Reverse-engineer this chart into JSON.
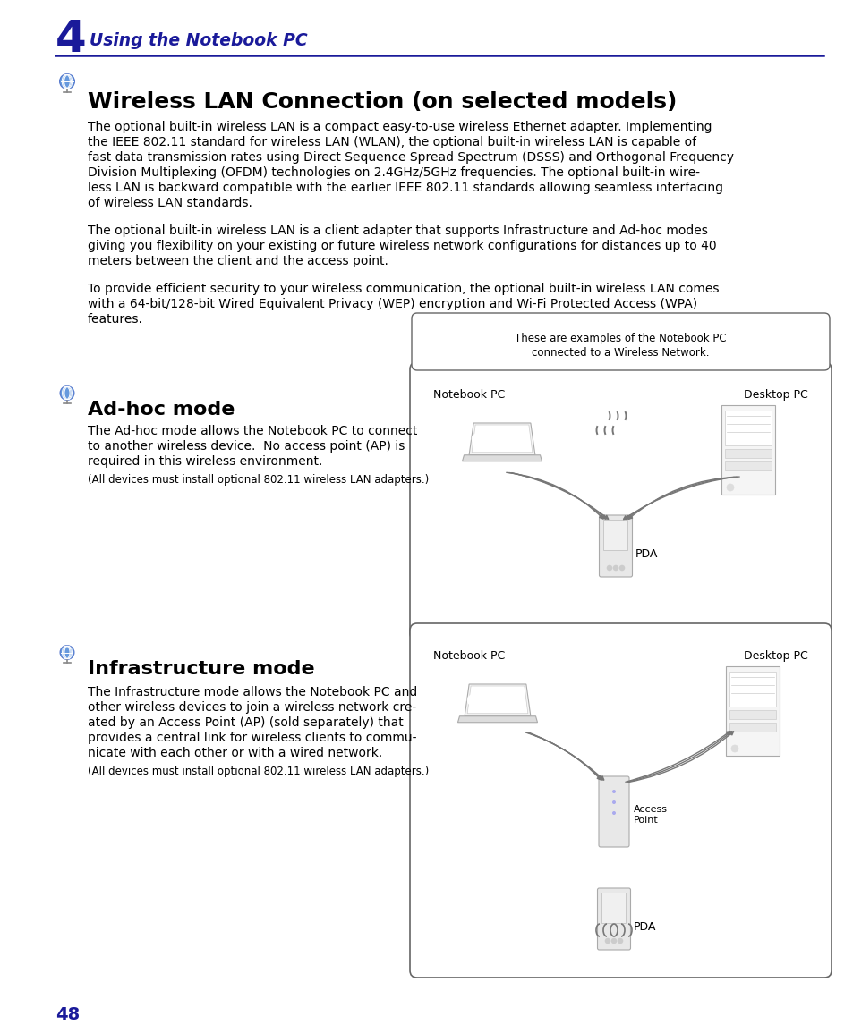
{
  "page_bg": "#ffffff",
  "chapter_number": "4",
  "chapter_title": "Using the Notebook PC",
  "chapter_color": "#1a1a9a",
  "title_line_color": "#1a1a9a",
  "section_title": "Wireless LAN Connection (on selected models)",
  "body_color": "#000000",
  "body_text_1a": "The optional built-in wireless LAN is a compact easy-to-use wireless Ethernet adapter. Implementing",
  "body_text_1b": "the IEEE 802.11 standard for wireless LAN (WLAN), the optional built-in wireless LAN is capable of",
  "body_text_1c": "fast data transmission rates using Direct Sequence Spread Spectrum (DSSS) and Orthogonal Frequency",
  "body_text_1d": "Division Multiplexing (OFDM) technologies on 2.4GHz/5GHz frequencies. The optional built-in wire-",
  "body_text_1e": "less LAN is backward compatible with the earlier IEEE 802.11 standards allowing seamless interfacing",
  "body_text_1f": "of wireless LAN standards.",
  "body_text_2a": "The optional built-in wireless LAN is a client adapter that supports Infrastructure and Ad-hoc modes",
  "body_text_2b": "giving you flexibility on your existing or future wireless network configurations for distances up to 40",
  "body_text_2c": "meters between the client and the access point.",
  "body_text_3a": "To provide efficient security to your wireless communication, the optional built-in wireless LAN comes",
  "body_text_3b": "with a 64-bit/128-bit Wired Equivalent Privacy (WEP) encryption and Wi-Fi Protected Access (WPA)",
  "body_text_3c": "features.",
  "adhoc_title": "Ad-hoc mode",
  "adhoc_body_1": "The Ad-hoc mode allows the Notebook PC to connect",
  "adhoc_body_2": "to another wireless device.  No access point (AP) is",
  "adhoc_body_3": "required in this wireless environment.",
  "adhoc_note": "(All devices must install optional 802.11 wireless LAN adapters.)",
  "infra_title": "Infrastructure mode",
  "infra_body_1": "The Infrastructure mode allows the Notebook PC and",
  "infra_body_2": "other wireless devices to join a wireless network cre-",
  "infra_body_3": "ated by an Access Point (AP) (sold separately) that",
  "infra_body_4": "provides a central link for wireless clients to commu-",
  "infra_body_5": "nicate with each other or with a wired network.",
  "infra_note": "(All devices must install optional 802.11 wireless LAN adapters.)",
  "callout_text_1": "These are examples of the Notebook PC",
  "callout_text_2": "connected to a Wireless Network.",
  "page_number": "48",
  "page_number_color": "#1a1a9a",
  "icon_outer_color": "#5599dd",
  "icon_inner_color": "#88bbee",
  "box_edge_color": "#666666",
  "device_line_color": "#888888",
  "wave_color": "#777777"
}
